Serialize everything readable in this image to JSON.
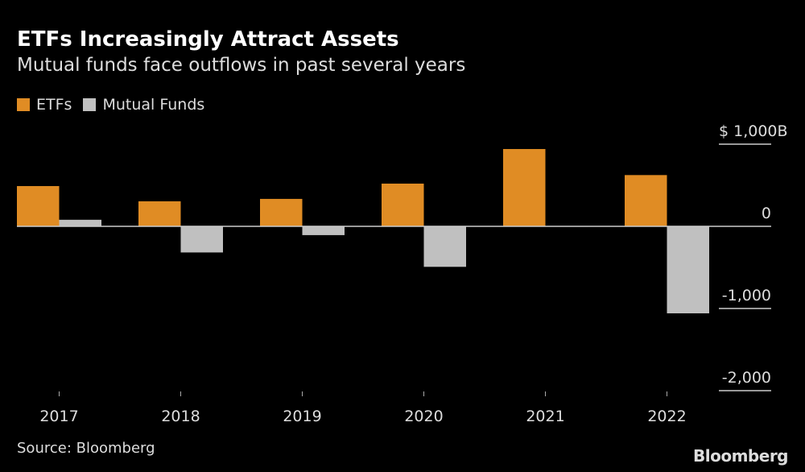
{
  "chart_data": {
    "type": "bar",
    "title": "ETFs Increasingly Attract Assets",
    "subtitle": "Mutual funds face outflows in past several years",
    "categories": [
      "2017",
      "2018",
      "2019",
      "2020",
      "2021",
      "2022"
    ],
    "series": [
      {
        "name": "ETFs",
        "color": "#e08c24",
        "values": [
          490,
          305,
          334,
          520,
          941,
          624
        ]
      },
      {
        "name": "Mutual Funds",
        "color": "#c0c0c0",
        "values": [
          80,
          -318,
          -107,
          -493,
          -5,
          -1059
        ]
      }
    ],
    "yticks": [
      1000,
      0,
      -1000,
      -2000
    ],
    "ytick_labels": [
      "$ 1,000B",
      "0",
      "-1,000",
      "-2,000"
    ],
    "ylim": [
      -2000,
      1000
    ],
    "xlabel": "",
    "ylabel": "",
    "grid": false,
    "legend": "top-left",
    "source": "Source: Bloomberg",
    "logo": "Bloomberg",
    "background": "#000000"
  }
}
